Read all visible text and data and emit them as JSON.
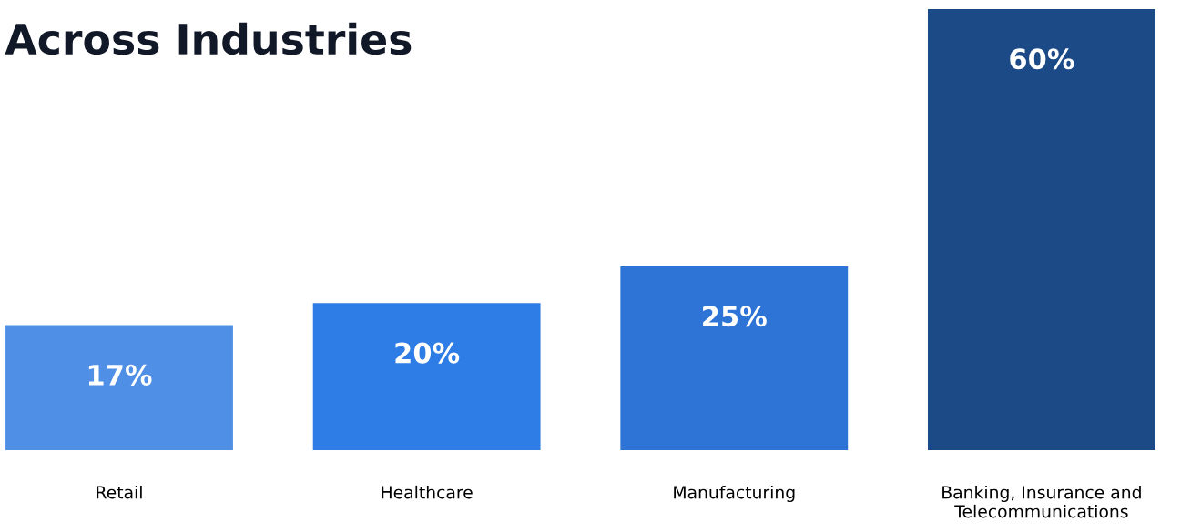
{
  "chart_data": {
    "type": "bar",
    "title": "Across Industries",
    "categories": [
      "Retail",
      "Healthcare",
      "Manufacturing",
      "Banking, Insurance and\nTelecommunications"
    ],
    "values": [
      17,
      20,
      25,
      60
    ],
    "value_labels": [
      "17%",
      "20%",
      "25%",
      "60%"
    ],
    "colors": [
      "#4f8fe6",
      "#2e7de6",
      "#2d74d6",
      "#1b4a87"
    ],
    "grid": false,
    "legend": false
  }
}
